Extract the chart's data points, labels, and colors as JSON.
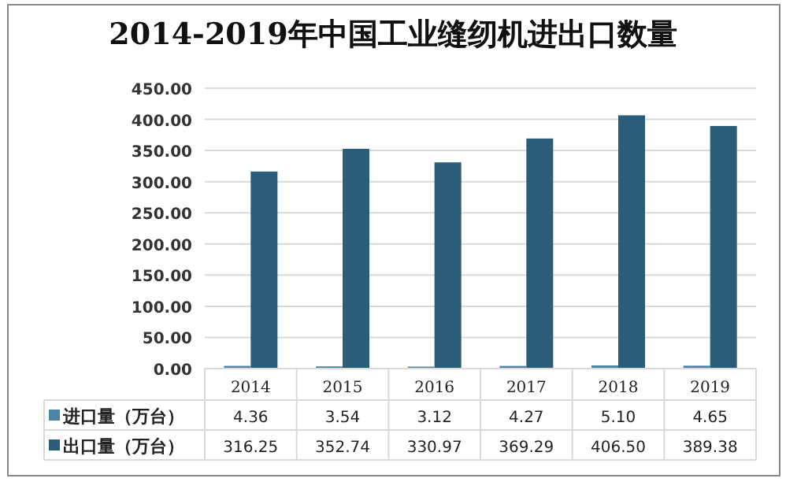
{
  "chart_data": {
    "type": "bar",
    "title": "2014-2019年中国工业缝纫机进出口数量",
    "categories": [
      "2014",
      "2015",
      "2016",
      "2017",
      "2018",
      "2019"
    ],
    "series": [
      {
        "name": "进口量（万台）",
        "color": "#4f83a5",
        "values": [
          4.36,
          3.54,
          3.12,
          4.27,
          5.1,
          4.65
        ],
        "value_labels": [
          "4.36",
          "3.54",
          "3.12",
          "4.27",
          "5.10",
          "4.65"
        ]
      },
      {
        "name": "出口量（万台）",
        "color": "#2a5d78",
        "values": [
          316.25,
          352.74,
          330.97,
          369.29,
          406.5,
          389.38
        ],
        "value_labels": [
          "316.25",
          "352.74",
          "330.97",
          "369.29",
          "406.50",
          "389.38"
        ]
      }
    ],
    "ylim": [
      0,
      450
    ],
    "yticks": [
      {
        "value": 0,
        "label": "0.00"
      },
      {
        "value": 50,
        "label": "50.00"
      },
      {
        "value": 100,
        "label": "100.00"
      },
      {
        "value": 150,
        "label": "150.00"
      },
      {
        "value": 200,
        "label": "200.00"
      },
      {
        "value": 250,
        "label": "250.00"
      },
      {
        "value": 300,
        "label": "300.00"
      },
      {
        "value": 350,
        "label": "350.00"
      },
      {
        "value": 400,
        "label": "400.00"
      },
      {
        "value": 450,
        "label": "450.00"
      }
    ],
    "grid": "y",
    "legend": "bottom"
  }
}
